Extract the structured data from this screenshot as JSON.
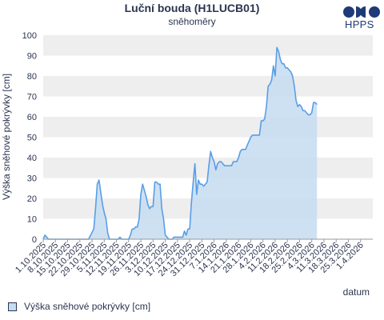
{
  "header": {
    "title": "Luční bouda (H1LUCB01)",
    "subtitle": "sněhoměry",
    "logo_text": "HPPS"
  },
  "legend": {
    "label": "Výška sněhové pokrývky [cm]"
  },
  "colors": {
    "series_line": "#5a9ee6",
    "series_fill": "#c6dcf1",
    "band_shade": "#eeeeee",
    "text": "#2a3550",
    "logo": "#1f3a78"
  },
  "chart_data": {
    "type": "area",
    "ylabel": "Výška sněhové pokrývky [cm]",
    "xlabel": "datum",
    "ylim": [
      0,
      100
    ],
    "yticks": [
      0,
      10,
      20,
      30,
      40,
      50,
      60,
      70,
      80,
      90,
      100
    ],
    "xlim": [
      "2025-10-01",
      "2026-04-08"
    ],
    "xtick_labels": [
      "1.10.2025",
      "8.10.2025",
      "15.10.2025",
      "22.10.2025",
      "29.10.2025",
      "5.11.2025",
      "12.11.2025",
      "19.11.2025",
      "26.11.2025",
      "3.12.2025",
      "10.12.2025",
      "17.12.2025",
      "24.12.2025",
      "31.12.2025",
      "7.1.2026",
      "14.1.2026",
      "21.1.2026",
      "28.1.2026",
      "4.2.2026",
      "11.2.2026",
      "18.2.2026",
      "25.2.2026",
      "4.3.2026",
      "11.3.2026",
      "18.3.2026",
      "25.3.2026",
      "1.4.2026"
    ],
    "grid": "alternating horizontal bands",
    "legend_position": "bottom-left",
    "series": [
      {
        "name": "Výška sněhové pokrývky [cm]",
        "points": [
          [
            "2025-10-01",
            0
          ],
          [
            "2025-10-02",
            2
          ],
          [
            "2025-10-03",
            1
          ],
          [
            "2025-10-04",
            0
          ],
          [
            "2025-10-25",
            0
          ],
          [
            "2025-10-27",
            0
          ],
          [
            "2025-10-30",
            5
          ],
          [
            "2025-10-31",
            15
          ],
          [
            "2025-11-01",
            27
          ],
          [
            "2025-11-02",
            29
          ],
          [
            "2025-11-03",
            23
          ],
          [
            "2025-11-04",
            17
          ],
          [
            "2025-11-05",
            13
          ],
          [
            "2025-11-06",
            10
          ],
          [
            "2025-11-07",
            3
          ],
          [
            "2025-11-08",
            0
          ],
          [
            "2025-11-13",
            0
          ],
          [
            "2025-11-14",
            1
          ],
          [
            "2025-11-15",
            0
          ],
          [
            "2025-11-19",
            0
          ],
          [
            "2025-11-20",
            2
          ],
          [
            "2025-11-21",
            5
          ],
          [
            "2025-11-22",
            5
          ],
          [
            "2025-11-23",
            6
          ],
          [
            "2025-11-24",
            6
          ],
          [
            "2025-11-25",
            10
          ],
          [
            "2025-11-26",
            22
          ],
          [
            "2025-11-27",
            27
          ],
          [
            "2025-11-28",
            24
          ],
          [
            "2025-11-29",
            21
          ],
          [
            "2025-11-30",
            17
          ],
          [
            "2025-12-01",
            15
          ],
          [
            "2025-12-02",
            16
          ],
          [
            "2025-12-03",
            16
          ],
          [
            "2025-12-04",
            28
          ],
          [
            "2025-12-05",
            28
          ],
          [
            "2025-12-06",
            27
          ],
          [
            "2025-12-07",
            27
          ],
          [
            "2025-12-08",
            15
          ],
          [
            "2025-12-09",
            10
          ],
          [
            "2025-12-10",
            2
          ],
          [
            "2025-12-11",
            1
          ],
          [
            "2025-12-12",
            0
          ],
          [
            "2025-12-13",
            0
          ],
          [
            "2025-12-14",
            0
          ],
          [
            "2025-12-15",
            1
          ],
          [
            "2025-12-16",
            1
          ],
          [
            "2025-12-18",
            1
          ],
          [
            "2025-12-19",
            1
          ],
          [
            "2025-12-20",
            1
          ],
          [
            "2025-12-21",
            4
          ],
          [
            "2025-12-22",
            2
          ],
          [
            "2025-12-23",
            5
          ],
          [
            "2025-12-24",
            5
          ],
          [
            "2025-12-25",
            18
          ],
          [
            "2025-12-26",
            28
          ],
          [
            "2025-12-27",
            37
          ],
          [
            "2025-12-28",
            22
          ],
          [
            "2025-12-29",
            29
          ],
          [
            "2025-12-30",
            27
          ],
          [
            "2025-12-31",
            27
          ],
          [
            "2026-01-01",
            26
          ],
          [
            "2026-01-02",
            27
          ],
          [
            "2026-01-03",
            28
          ],
          [
            "2026-01-04",
            36
          ],
          [
            "2026-01-05",
            43
          ],
          [
            "2026-01-06",
            40
          ],
          [
            "2026-01-07",
            38
          ],
          [
            "2026-01-08",
            34
          ],
          [
            "2026-01-09",
            37
          ],
          [
            "2026-01-10",
            38
          ],
          [
            "2026-01-11",
            38
          ],
          [
            "2026-01-12",
            37
          ],
          [
            "2026-01-13",
            36
          ],
          [
            "2026-01-14",
            36
          ],
          [
            "2026-01-15",
            36
          ],
          [
            "2026-01-16",
            36
          ],
          [
            "2026-01-17",
            36
          ],
          [
            "2026-01-18",
            38
          ],
          [
            "2026-01-19",
            38
          ],
          [
            "2026-01-20",
            38
          ],
          [
            "2026-01-21",
            40
          ],
          [
            "2026-01-22",
            43
          ],
          [
            "2026-01-23",
            44
          ],
          [
            "2026-01-24",
            44
          ],
          [
            "2026-01-25",
            44
          ],
          [
            "2026-01-26",
            46
          ],
          [
            "2026-01-27",
            48
          ],
          [
            "2026-01-28",
            50
          ],
          [
            "2026-01-29",
            51
          ],
          [
            "2026-01-30",
            51
          ],
          [
            "2026-01-31",
            51
          ],
          [
            "2026-02-01",
            51
          ],
          [
            "2026-02-02",
            51
          ],
          [
            "2026-02-03",
            58
          ],
          [
            "2026-02-04",
            58
          ],
          [
            "2026-02-05",
            59
          ],
          [
            "2026-02-06",
            65
          ],
          [
            "2026-02-07",
            75
          ],
          [
            "2026-02-08",
            76
          ],
          [
            "2026-02-09",
            78
          ],
          [
            "2026-02-10",
            85
          ],
          [
            "2026-02-11",
            80
          ],
          [
            "2026-02-12",
            94
          ],
          [
            "2026-02-13",
            92
          ],
          [
            "2026-02-14",
            88
          ],
          [
            "2026-02-15",
            86
          ],
          [
            "2026-02-16",
            86
          ],
          [
            "2026-02-17",
            84
          ],
          [
            "2026-02-18",
            84
          ],
          [
            "2026-02-19",
            83
          ],
          [
            "2026-02-20",
            82
          ],
          [
            "2026-02-21",
            80
          ],
          [
            "2026-02-22",
            75
          ],
          [
            "2026-02-23",
            68
          ],
          [
            "2026-02-24",
            65
          ],
          [
            "2026-02-25",
            66
          ],
          [
            "2026-02-26",
            65
          ],
          [
            "2026-02-27",
            63
          ],
          [
            "2026-02-28",
            63
          ],
          [
            "2026-03-01",
            62
          ],
          [
            "2026-03-02",
            61
          ],
          [
            "2026-03-03",
            61
          ],
          [
            "2026-03-04",
            62
          ],
          [
            "2026-03-05",
            67
          ],
          [
            "2026-03-06",
            67
          ],
          [
            "2026-03-07",
            66
          ]
        ]
      }
    ]
  }
}
